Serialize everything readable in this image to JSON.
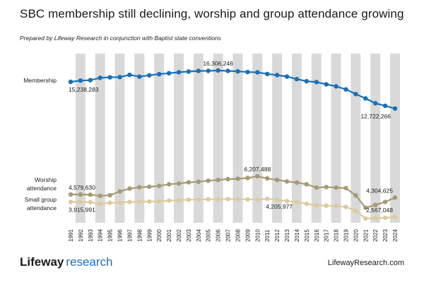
{
  "header": {
    "title": "SBC membership still declining, worship and group attendance growing",
    "subtitle": "Prepared by Lifeway Research in conjunction with Baptist state conventions"
  },
  "footer": {
    "brand_part1": "Lifeway",
    "brand_part2": "research",
    "website": "LifewayResearch.com"
  },
  "colors": {
    "membership": "#1a6fb8",
    "worship": "#a59a74",
    "small_group": "#dccb9e",
    "band": "#d9d9d9"
  },
  "chart_data": {
    "type": "line",
    "x": [
      1991,
      1992,
      1993,
      1994,
      1995,
      1996,
      1997,
      1998,
      1999,
      2000,
      2001,
      2002,
      2003,
      2004,
      2005,
      2006,
      2007,
      2008,
      2009,
      2010,
      2011,
      2012,
      2013,
      2014,
      2015,
      2016,
      2017,
      2018,
      2019,
      2020,
      2021,
      2022,
      2023,
      2024
    ],
    "x_tick_labels": [
      "1991",
      "1992",
      "1993",
      "1994",
      "1995",
      "1996",
      "1997",
      "1998",
      "1999",
      "2000",
      "2001",
      "2002",
      "2003",
      "2004",
      "2005",
      "2006",
      "2007",
      "2008",
      "2009",
      "2010",
      "2011",
      "2012",
      "2013",
      "2014",
      "2015",
      "2016",
      "2017",
      "2018",
      "2019",
      "2020",
      "2021",
      "2022",
      "2023",
      "2024"
    ],
    "grid": "alternating vertical bands",
    "series": [
      {
        "name": "Membership",
        "values": [
          15238283,
          15358866,
          15398642,
          15614060,
          15663296,
          15691964,
          15891514,
          15729356,
          15851756,
          15960308,
          16052920,
          16137736,
          16206718,
          16267494,
          16270315,
          16306246,
          16266920,
          16228438,
          16160088,
          16136044,
          15978112,
          15872404,
          15735640,
          15499173,
          15294764,
          15216978,
          15005638,
          14813234,
          14525579,
          14089947,
          13680493,
          13223122,
          12982090,
          12722266
        ],
        "labels": [
          {
            "index": 0,
            "text": "15,238,283",
            "pos": "below"
          },
          {
            "index": 15,
            "text": "16,306,246",
            "pos": "above"
          },
          {
            "index": 33,
            "text": "12,722,266",
            "pos": "below-left"
          }
        ]
      },
      {
        "name": "Worship attendance",
        "values": [
          4579630,
          4580000,
          4560000,
          4460000,
          4520000,
          4850000,
          5100000,
          5230000,
          5270000,
          5350000,
          5490000,
          5560000,
          5670000,
          5720000,
          5810000,
          5880000,
          5950000,
          5990000,
          6050000,
          6207488,
          6010000,
          5880000,
          5750000,
          5640000,
          5490000,
          5200000,
          5250000,
          5200000,
          5150000,
          4500000,
          3400000,
          3650000,
          3920000,
          4304625
        ],
        "labels": [
          {
            "index": 0,
            "text": "4,579,630",
            "pos": "above"
          },
          {
            "index": 19,
            "text": "6,207,488",
            "pos": "above"
          },
          {
            "index": 33,
            "text": "4,304,625",
            "pos": "above-left"
          }
        ]
      },
      {
        "name": "Small group attendance",
        "values": [
          3915991,
          3925000,
          3900000,
          3760000,
          3850000,
          3860000,
          3920000,
          3940000,
          3960000,
          3980000,
          4040000,
          4060000,
          4120000,
          4140000,
          4160000,
          4160000,
          4180000,
          4160000,
          4150000,
          4120000,
          4205977,
          4100000,
          4000000,
          3900000,
          3760000,
          3620000,
          3590000,
          3560000,
          3480000,
          3150000,
          2450000,
          2480000,
          2510000,
          2567048
        ],
        "labels": [
          {
            "index": 0,
            "text": "3,915,991",
            "pos": "below"
          },
          {
            "index": 20,
            "text": "4,205,977",
            "pos": "below"
          },
          {
            "index": 33,
            "text": "2,567,048",
            "pos": "above-left"
          }
        ]
      }
    ],
    "series_labels": [
      {
        "series": 0,
        "lines": [
          "Membership"
        ]
      },
      {
        "series": 1,
        "lines": [
          "Worship",
          "attendance"
        ]
      },
      {
        "series": 2,
        "lines": [
          "Small group",
          "attendance"
        ]
      }
    ]
  }
}
